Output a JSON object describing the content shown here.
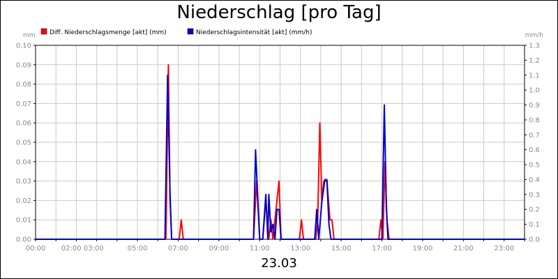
{
  "chart_data": {
    "type": "line",
    "title": "Niederschlag [pro Tag]",
    "date_label": "23.03",
    "y_left_unit": "mm",
    "y_right_unit": "mm/h",
    "y_left_range": [
      0,
      0.1
    ],
    "y_right_range": [
      0,
      1.3
    ],
    "y_left_ticks": [
      "0.00",
      "0.01",
      "0.02",
      "0.03",
      "0.04",
      "0.05",
      "0.06",
      "0.07",
      "0.08",
      "0.09",
      "0.10"
    ],
    "y_right_ticks": [
      "0.0",
      "0.1",
      "0.2",
      "0.3",
      "0.4",
      "0.5",
      "0.6",
      "0.7",
      "0.8",
      "0.9",
      "1.0",
      "1.1",
      "1.2",
      "1.3"
    ],
    "x_range_hours": [
      0,
      24
    ],
    "x_ticks": [
      {
        "h": 0,
        "label": "00:00"
      },
      {
        "h": 2.3,
        "label": "02:00 03:00"
      },
      {
        "h": 5,
        "label": "05:00"
      },
      {
        "h": 7,
        "label": "07:00"
      },
      {
        "h": 9,
        "label": "09:00"
      },
      {
        "h": 11,
        "label": "11:00"
      },
      {
        "h": 13,
        "label": "13:00"
      },
      {
        "h": 15,
        "label": "15:00"
      },
      {
        "h": 17,
        "label": "17:00"
      },
      {
        "h": 19,
        "label": "19:00"
      },
      {
        "h": 21,
        "label": "21:00"
      },
      {
        "h": 23,
        "label": "23:00"
      }
    ],
    "grid": true,
    "legend_position": "top-left",
    "series": [
      {
        "name": "Diff. Niederschlagsmenge [akt] (mm)",
        "axis": "left",
        "color": "#ff0000",
        "points": [
          [
            0,
            0
          ],
          [
            6.4,
            0
          ],
          [
            6.52,
            0.09
          ],
          [
            6.6,
            0.02
          ],
          [
            6.68,
            0
          ],
          [
            7.05,
            0
          ],
          [
            7.15,
            0.01
          ],
          [
            7.25,
            0
          ],
          [
            10.7,
            0
          ],
          [
            10.85,
            0.03
          ],
          [
            11.0,
            0
          ],
          [
            11.15,
            0
          ],
          [
            11.3,
            0.02
          ],
          [
            11.45,
            0
          ],
          [
            11.55,
            0.01
          ],
          [
            11.65,
            0
          ],
          [
            11.85,
            0.02
          ],
          [
            11.95,
            0.03
          ],
          [
            12.05,
            0
          ],
          [
            12.95,
            0
          ],
          [
            13.05,
            0.01
          ],
          [
            13.15,
            0
          ],
          [
            13.75,
            0
          ],
          [
            13.85,
            0.01
          ],
          [
            13.95,
            0.06
          ],
          [
            14.05,
            0.02
          ],
          [
            14.15,
            0.03
          ],
          [
            14.3,
            0.03
          ],
          [
            14.45,
            0.01
          ],
          [
            14.55,
            0.01
          ],
          [
            14.65,
            0
          ],
          [
            16.85,
            0
          ],
          [
            16.95,
            0.01
          ],
          [
            17.05,
            0
          ],
          [
            17.15,
            0.04
          ],
          [
            17.25,
            0.01
          ],
          [
            17.35,
            0
          ],
          [
            24,
            0
          ]
        ]
      },
      {
        "name": "Niederschlagsintensität [akt] (mm/h)",
        "axis": "right",
        "color": "#0000cc",
        "points": [
          [
            0,
            0
          ],
          [
            6.35,
            0
          ],
          [
            6.48,
            1.1
          ],
          [
            6.6,
            0.3
          ],
          [
            6.68,
            0
          ],
          [
            10.7,
            0
          ],
          [
            10.8,
            0.6
          ],
          [
            11.0,
            0
          ],
          [
            11.15,
            0
          ],
          [
            11.3,
            0.3
          ],
          [
            11.4,
            0
          ],
          [
            11.45,
            0.3
          ],
          [
            11.55,
            0.05
          ],
          [
            11.65,
            0.1
          ],
          [
            11.75,
            0
          ],
          [
            11.85,
            0.2
          ],
          [
            11.95,
            0.2
          ],
          [
            12.05,
            0
          ],
          [
            13.7,
            0
          ],
          [
            13.8,
            0.2
          ],
          [
            13.9,
            0
          ],
          [
            14.05,
            0.25
          ],
          [
            14.2,
            0.4
          ],
          [
            14.3,
            0.4
          ],
          [
            14.4,
            0.1
          ],
          [
            14.5,
            0
          ],
          [
            17.0,
            0
          ],
          [
            17.12,
            0.9
          ],
          [
            17.22,
            0.2
          ],
          [
            17.3,
            0
          ],
          [
            24,
            0
          ]
        ]
      }
    ]
  }
}
